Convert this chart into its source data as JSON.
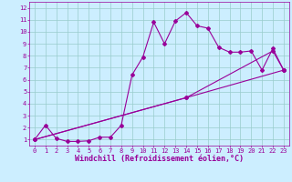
{
  "xlabel": "Windchill (Refroidissement éolien,°C)",
  "bg_color": "#cceeff",
  "grid_color": "#99cccc",
  "line_color": "#990099",
  "xlim": [
    -0.5,
    23.5
  ],
  "ylim": [
    0.5,
    12.5
  ],
  "xticks": [
    0,
    1,
    2,
    3,
    4,
    5,
    6,
    7,
    8,
    9,
    10,
    11,
    12,
    13,
    14,
    15,
    16,
    17,
    18,
    19,
    20,
    21,
    22,
    23
  ],
  "yticks": [
    1,
    2,
    3,
    4,
    5,
    6,
    7,
    8,
    9,
    10,
    11,
    12
  ],
  "line1_x": [
    0,
    1,
    2,
    3,
    4,
    5,
    6,
    7,
    8,
    9,
    10,
    11,
    12,
    13,
    14,
    15,
    16,
    17,
    18,
    19,
    20,
    21,
    22,
    23
  ],
  "line1_y": [
    1.0,
    2.2,
    1.1,
    0.85,
    0.85,
    0.9,
    1.2,
    1.2,
    2.2,
    6.4,
    7.9,
    10.8,
    9.0,
    10.9,
    11.6,
    10.5,
    10.3,
    8.7,
    8.3,
    8.3,
    8.4,
    6.8,
    8.6,
    6.8
  ],
  "line3_x": [
    0,
    14,
    23
  ],
  "line3_y": [
    1.0,
    4.5,
    6.8
  ],
  "line4_x": [
    0,
    14,
    22,
    23
  ],
  "line4_y": [
    1.0,
    4.5,
    8.4,
    6.8
  ],
  "markersize": 2.0,
  "linewidth": 0.8,
  "tick_fontsize": 5.0,
  "xlabel_fontsize": 6.0
}
